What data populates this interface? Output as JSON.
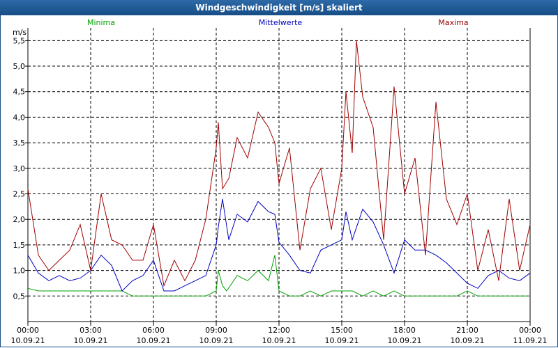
{
  "window": {
    "title": "Windgeschwindigkeit [m/s] skaliert"
  },
  "chart_data": {
    "type": "line",
    "title": "Windgeschwindigkeit [m/s] skaliert",
    "ylabel": "m/s",
    "xlabel": "",
    "ylim": [
      0.0,
      5.75
    ],
    "xlim": [
      0,
      24
    ],
    "grid": true,
    "y_ticks": [
      "0,5",
      "1,0",
      "1,5",
      "2,0",
      "2,5",
      "3,0",
      "3,5",
      "4,0",
      "4,5",
      "5,0",
      "5,5"
    ],
    "y_tick_values": [
      0.5,
      1.0,
      1.5,
      2.0,
      2.5,
      3.0,
      3.5,
      4.0,
      4.5,
      5.0,
      5.5
    ],
    "x_tick_hours": [
      0,
      3,
      6,
      9,
      12,
      15,
      18,
      21,
      24
    ],
    "x_tick_times": [
      "00:00",
      "03:00",
      "06:00",
      "09:00",
      "12:00",
      "15:00",
      "18:00",
      "21:00",
      "00:00"
    ],
    "x_tick_dates": [
      "10.09.21",
      "10.09.21",
      "10.09.21",
      "10.09.21",
      "10.09.21",
      "10.09.21",
      "10.09.21",
      "10.09.21",
      "11.09.21"
    ],
    "series": [
      {
        "name": "Minima",
        "color": "#00a000",
        "x": [
          0,
          0.5,
          1,
          1.5,
          2,
          2.5,
          3,
          3.5,
          4,
          4.5,
          5,
          5.5,
          6,
          6.5,
          7,
          7.5,
          8,
          8.5,
          9,
          9.1,
          9.3,
          9.5,
          10,
          10.5,
          11,
          11.5,
          11.8,
          12,
          12.5,
          13,
          13.5,
          14,
          14.5,
          15,
          15.5,
          16,
          16.5,
          17,
          17.5,
          18,
          18.5,
          19,
          19.5,
          20,
          20.5,
          21,
          21.5,
          22,
          22.5,
          23,
          23.5,
          24
        ],
        "values": [
          0.65,
          0.6,
          0.6,
          0.6,
          0.6,
          0.6,
          0.6,
          0.6,
          0.6,
          0.6,
          0.5,
          0.5,
          0.5,
          0.5,
          0.5,
          0.5,
          0.5,
          0.5,
          0.6,
          1.0,
          0.7,
          0.6,
          0.9,
          0.8,
          1.0,
          0.8,
          1.3,
          0.6,
          0.5,
          0.5,
          0.6,
          0.5,
          0.6,
          0.6,
          0.6,
          0.5,
          0.6,
          0.5,
          0.6,
          0.5,
          0.5,
          0.5,
          0.5,
          0.5,
          0.5,
          0.6,
          0.5,
          0.5,
          0.5,
          0.5,
          0.5,
          0.5
        ]
      },
      {
        "name": "Mittelwerte",
        "color": "#0000c0",
        "x": [
          0,
          0.5,
          1,
          1.5,
          2,
          2.5,
          3,
          3.5,
          4,
          4.5,
          5,
          5.5,
          6,
          6.5,
          7,
          7.5,
          8,
          8.5,
          9,
          9.1,
          9.3,
          9.6,
          10,
          10.5,
          11,
          11.5,
          11.8,
          12,
          12.5,
          13,
          13.5,
          14,
          14.5,
          15,
          15.2,
          15.5,
          16,
          16.5,
          17,
          17.5,
          18,
          18.5,
          19,
          19.5,
          20,
          20.5,
          21,
          21.5,
          22,
          22.5,
          23,
          23.5,
          24
        ],
        "values": [
          1.3,
          0.95,
          0.8,
          0.9,
          0.8,
          0.85,
          1.0,
          1.3,
          1.1,
          0.6,
          0.8,
          0.9,
          1.2,
          0.6,
          0.6,
          0.7,
          0.8,
          0.9,
          1.5,
          1.85,
          2.4,
          1.6,
          2.1,
          1.95,
          2.35,
          2.15,
          2.1,
          1.55,
          1.3,
          1.0,
          0.95,
          1.4,
          1.5,
          1.6,
          2.15,
          1.6,
          2.2,
          1.95,
          1.5,
          0.95,
          1.6,
          1.4,
          1.4,
          1.3,
          1.15,
          0.95,
          0.75,
          0.65,
          0.9,
          1.0,
          0.85,
          0.8,
          0.95
        ]
      },
      {
        "name": "Maxima",
        "color": "#a00000",
        "x": [
          0,
          0.5,
          1,
          1.5,
          2,
          2.5,
          3,
          3.5,
          4,
          4.5,
          5,
          5.5,
          6,
          6.5,
          7,
          7.5,
          8,
          8.5,
          9,
          9.1,
          9.3,
          9.6,
          10,
          10.5,
          11,
          11.5,
          11.8,
          12,
          12.5,
          13,
          13.5,
          14,
          14.5,
          15,
          15.2,
          15.5,
          15.7,
          16,
          16.5,
          17,
          17.5,
          18,
          18.5,
          19,
          19.5,
          20,
          20.5,
          21,
          21.5,
          22,
          22.5,
          23,
          23.5,
          24
        ],
        "values": [
          2.6,
          1.3,
          1.0,
          1.2,
          1.4,
          1.9,
          1.0,
          2.5,
          1.6,
          1.5,
          1.2,
          1.2,
          1.9,
          0.7,
          1.2,
          0.8,
          1.2,
          2.0,
          3.4,
          3.9,
          2.6,
          2.8,
          3.6,
          3.2,
          4.1,
          3.8,
          3.5,
          2.7,
          3.4,
          1.4,
          2.6,
          3.0,
          1.8,
          3.0,
          4.5,
          3.3,
          5.5,
          4.4,
          3.8,
          1.6,
          4.6,
          2.5,
          3.2,
          1.3,
          4.3,
          2.4,
          1.9,
          2.5,
          1.0,
          1.8,
          0.8,
          2.4,
          1.0,
          1.9
        ]
      }
    ]
  }
}
